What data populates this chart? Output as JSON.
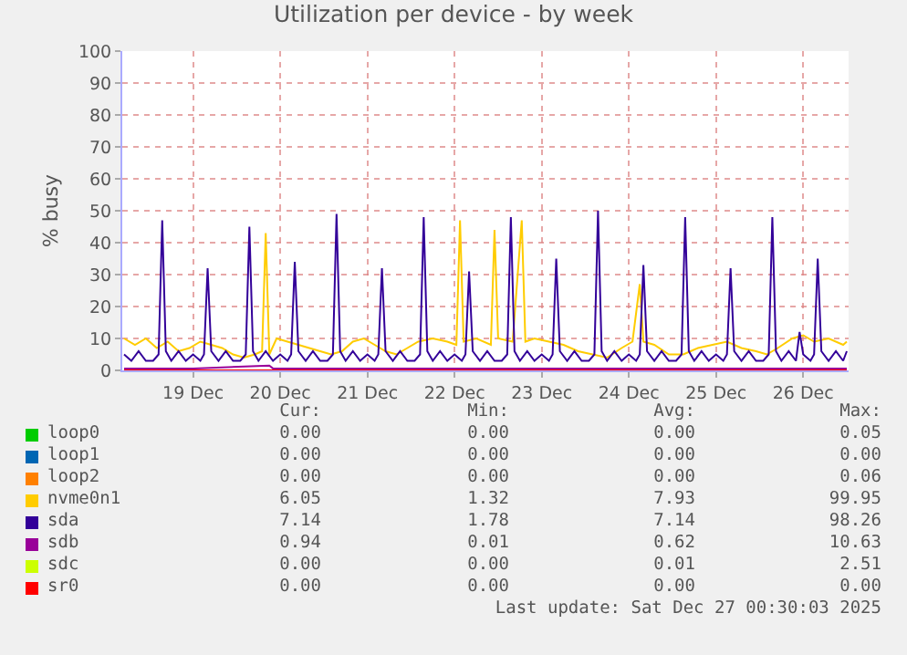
{
  "chart_data": {
    "type": "line",
    "title": "Utilization per device - by week",
    "ylabel": "% busy",
    "xlim": [
      "2025-12-18T16:30",
      "2025-12-27T00:30"
    ],
    "xticks": [
      {
        "value": "2025-12-19T12:00",
        "label": "19 Dec"
      },
      {
        "value": "2025-12-20T12:00",
        "label": "20 Dec"
      },
      {
        "value": "2025-12-21T12:00",
        "label": "21 Dec"
      },
      {
        "value": "2025-12-22T12:00",
        "label": "22 Dec"
      },
      {
        "value": "2025-12-23T12:00",
        "label": "23 Dec"
      },
      {
        "value": "2025-12-24T12:00",
        "label": "24 Dec"
      },
      {
        "value": "2025-12-25T12:00",
        "label": "25 Dec"
      },
      {
        "value": "2025-12-26T12:00",
        "label": "26 Dec"
      }
    ],
    "ylim": [
      0,
      100
    ],
    "yticks": [
      0,
      10,
      20,
      30,
      40,
      50,
      60,
      70,
      80,
      90,
      100
    ],
    "grid": true,
    "legend": "bottom",
    "series": [
      {
        "name": "loop0",
        "color": "#00cc00"
      },
      {
        "name": "loop1",
        "color": "#0066b3"
      },
      {
        "name": "loop2",
        "color": "#ff8000"
      },
      {
        "name": "nvme0n1",
        "color": "#ffcc00",
        "x": [
          "2025-12-18T17:00",
          "2025-12-18T20:00",
          "2025-12-18T23:00",
          "2025-12-19T02:00",
          "2025-12-19T05:00",
          "2025-12-19T08:00",
          "2025-12-19T11:00",
          "2025-12-19T14:00",
          "2025-12-19T17:00",
          "2025-12-19T20:00",
          "2025-12-19T23:00",
          "2025-12-20T02:00",
          "2025-12-20T05:00",
          "2025-12-20T07:00",
          "2025-12-20T08:00",
          "2025-12-20T09:00",
          "2025-12-20T11:00",
          "2025-12-20T14:00",
          "2025-12-20T17:00",
          "2025-12-20T20:00",
          "2025-12-20T23:00",
          "2025-12-21T02:00",
          "2025-12-21T05:00",
          "2025-12-21T08:00",
          "2025-12-21T11:00",
          "2025-12-21T14:00",
          "2025-12-21T17:00",
          "2025-12-21T20:00",
          "2025-12-21T23:00",
          "2025-12-22T02:00",
          "2025-12-22T06:00",
          "2025-12-22T10:00",
          "2025-12-22T12:30",
          "2025-12-22T13:30",
          "2025-12-22T14:30",
          "2025-12-22T18:00",
          "2025-12-22T22:00",
          "2025-12-22T23:00",
          "2025-12-23T00:00",
          "2025-12-23T04:00",
          "2025-12-23T06:30",
          "2025-12-23T07:30",
          "2025-12-23T10:00",
          "2025-12-23T14:00",
          "2025-12-23T18:00",
          "2025-12-23T22:00",
          "2025-12-24T02:00",
          "2025-12-24T06:00",
          "2025-12-24T10:00",
          "2025-12-24T13:00",
          "2025-12-24T15:00",
          "2025-12-24T16:00",
          "2025-12-24T19:00",
          "2025-12-24T23:00",
          "2025-12-25T03:00",
          "2025-12-25T07:00",
          "2025-12-25T11:00",
          "2025-12-25T15:00",
          "2025-12-25T19:00",
          "2025-12-25T23:00",
          "2025-12-26T02:00",
          "2025-12-26T05:00",
          "2025-12-26T09:00",
          "2025-12-26T12:00",
          "2025-12-26T15:00",
          "2025-12-26T19:00",
          "2025-12-26T23:00",
          "2025-12-27T00:00"
        ],
        "values": [
          10,
          8,
          10,
          7,
          9,
          6,
          7,
          9,
          8,
          7,
          5,
          4,
          5,
          6,
          43,
          5,
          10,
          9,
          8,
          7,
          6,
          5,
          6,
          9,
          10,
          8,
          6,
          5,
          7,
          9,
          10,
          9,
          8,
          47,
          9,
          10,
          8,
          44,
          10,
          9,
          47,
          9,
          10,
          9,
          8,
          6,
          5,
          4,
          7,
          9,
          27,
          9,
          8,
          5,
          5,
          7,
          8,
          9,
          7,
          6,
          5,
          7,
          10,
          11,
          9,
          10,
          8,
          9
        ]
      },
      {
        "name": "sda",
        "color": "#330099",
        "x": [
          "2025-12-18T17:00",
          "2025-12-18T19:00",
          "2025-12-18T21:00",
          "2025-12-18T23:00",
          "2025-12-19T01:00",
          "2025-12-19T02:30",
          "2025-12-19T03:30",
          "2025-12-19T04:30",
          "2025-12-19T06:00",
          "2025-12-19T08:00",
          "2025-12-19T10:00",
          "2025-12-19T12:00",
          "2025-12-19T14:00",
          "2025-12-19T15:00",
          "2025-12-19T16:00",
          "2025-12-19T17:00",
          "2025-12-19T19:00",
          "2025-12-19T21:00",
          "2025-12-19T23:00",
          "2025-12-20T01:00",
          "2025-12-20T02:30",
          "2025-12-20T03:30",
          "2025-12-20T04:30",
          "2025-12-20T06:00",
          "2025-12-20T08:00",
          "2025-12-20T10:00",
          "2025-12-20T12:00",
          "2025-12-20T14:00",
          "2025-12-20T15:00",
          "2025-12-20T16:00",
          "2025-12-20T17:00",
          "2025-12-20T19:00",
          "2025-12-20T21:00",
          "2025-12-20T23:00",
          "2025-12-21T01:00",
          "2025-12-21T02:30",
          "2025-12-21T03:30",
          "2025-12-21T04:30",
          "2025-12-21T06:00",
          "2025-12-21T08:00",
          "2025-12-21T10:00",
          "2025-12-21T12:00",
          "2025-12-21T14:00",
          "2025-12-21T15:00",
          "2025-12-21T16:00",
          "2025-12-21T17:00",
          "2025-12-21T19:00",
          "2025-12-21T21:00",
          "2025-12-21T23:00",
          "2025-12-22T01:00",
          "2025-12-22T02:30",
          "2025-12-22T03:30",
          "2025-12-22T04:30",
          "2025-12-22T06:00",
          "2025-12-22T08:00",
          "2025-12-22T10:00",
          "2025-12-22T12:00",
          "2025-12-22T14:00",
          "2025-12-22T15:00",
          "2025-12-22T16:00",
          "2025-12-22T17:00",
          "2025-12-22T19:00",
          "2025-12-22T21:00",
          "2025-12-22T23:00",
          "2025-12-23T01:00",
          "2025-12-23T02:30",
          "2025-12-23T03:30",
          "2025-12-23T04:30",
          "2025-12-23T06:00",
          "2025-12-23T08:00",
          "2025-12-23T10:00",
          "2025-12-23T12:00",
          "2025-12-23T14:00",
          "2025-12-23T15:00",
          "2025-12-23T16:00",
          "2025-12-23T17:00",
          "2025-12-23T19:00",
          "2025-12-23T21:00",
          "2025-12-23T23:00",
          "2025-12-24T01:00",
          "2025-12-24T02:30",
          "2025-12-24T03:30",
          "2025-12-24T04:30",
          "2025-12-24T06:00",
          "2025-12-24T08:00",
          "2025-12-24T10:00",
          "2025-12-24T12:00",
          "2025-12-24T14:00",
          "2025-12-24T15:00",
          "2025-12-24T16:00",
          "2025-12-24T17:00",
          "2025-12-24T19:00",
          "2025-12-24T21:00",
          "2025-12-24T23:00",
          "2025-12-25T01:00",
          "2025-12-25T02:30",
          "2025-12-25T03:30",
          "2025-12-25T04:30",
          "2025-12-25T06:00",
          "2025-12-25T08:00",
          "2025-12-25T10:00",
          "2025-12-25T12:00",
          "2025-12-25T14:00",
          "2025-12-25T15:00",
          "2025-12-25T16:00",
          "2025-12-25T17:00",
          "2025-12-25T19:00",
          "2025-12-25T21:00",
          "2025-12-25T23:00",
          "2025-12-26T01:00",
          "2025-12-26T02:30",
          "2025-12-26T03:30",
          "2025-12-26T04:30",
          "2025-12-26T06:00",
          "2025-12-26T08:00",
          "2025-12-26T10:00",
          "2025-12-26T11:00",
          "2025-12-26T12:00",
          "2025-12-26T14:00",
          "2025-12-26T15:00",
          "2025-12-26T16:00",
          "2025-12-26T17:00",
          "2025-12-26T19:00",
          "2025-12-26T21:00",
          "2025-12-26T23:00",
          "2025-12-27T00:00"
        ],
        "values": [
          5,
          3,
          6,
          3,
          3,
          5,
          47,
          6,
          3,
          6,
          3,
          5,
          3,
          5,
          32,
          6,
          3,
          6,
          3,
          3,
          5,
          45,
          6,
          3,
          6,
          3,
          5,
          3,
          5,
          34,
          6,
          3,
          6,
          3,
          3,
          5,
          49,
          6,
          3,
          6,
          3,
          5,
          3,
          5,
          32,
          6,
          3,
          6,
          3,
          3,
          5,
          48,
          6,
          3,
          6,
          3,
          5,
          3,
          5,
          31,
          6,
          3,
          6,
          3,
          3,
          5,
          48,
          6,
          3,
          6,
          3,
          5,
          3,
          5,
          35,
          6,
          3,
          6,
          3,
          3,
          5,
          50,
          6,
          3,
          6,
          3,
          5,
          3,
          5,
          33,
          6,
          3,
          6,
          3,
          3,
          5,
          48,
          6,
          3,
          6,
          3,
          5,
          3,
          5,
          32,
          6,
          3,
          6,
          3,
          3,
          5,
          48,
          6,
          3,
          6,
          3,
          12,
          5,
          3,
          5,
          35,
          6,
          3,
          6,
          3,
          6
        ]
      },
      {
        "name": "sdb",
        "color": "#990099",
        "x": [
          "2025-12-18T17:00",
          "2025-12-19T12:00",
          "2025-12-20T09:00",
          "2025-12-20T10:00",
          "2025-12-21T12:00",
          "2025-12-22T12:00",
          "2025-12-23T12:00",
          "2025-12-24T12:00",
          "2025-12-25T12:00",
          "2025-12-26T12:00",
          "2025-12-27T00:00"
        ],
        "values": [
          0.6,
          0.6,
          1.5,
          0.6,
          0.6,
          0.6,
          0.6,
          0.6,
          0.6,
          0.6,
          0.6
        ]
      },
      {
        "name": "sdc",
        "color": "#ccff00"
      },
      {
        "name": "sr0",
        "color": "#ff0000",
        "x": [
          "2025-12-18T17:00",
          "2025-12-27T00:00"
        ],
        "values": [
          0,
          0
        ]
      }
    ],
    "annotations": [
      "Cur:",
      "Min:",
      "Avg:",
      "Max:",
      "0.00",
      "0.00",
      "0.00",
      "0.05",
      "0.00",
      "0.00",
      "0.00",
      "0.00",
      "0.00",
      "0.00",
      "0.00",
      "0.06",
      "6.05",
      "1.32",
      "7.93",
      "99.95",
      "7.14",
      "1.78",
      "7.14",
      "98.26",
      "0.94",
      "0.01",
      "0.62",
      "10.63",
      "0.00",
      "0.00",
      "0.01",
      "2.51",
      "0.00",
      "0.00",
      "0.00",
      "0.00",
      "Last update: Sat Dec 27 00:30:03 2025"
    ]
  }
}
